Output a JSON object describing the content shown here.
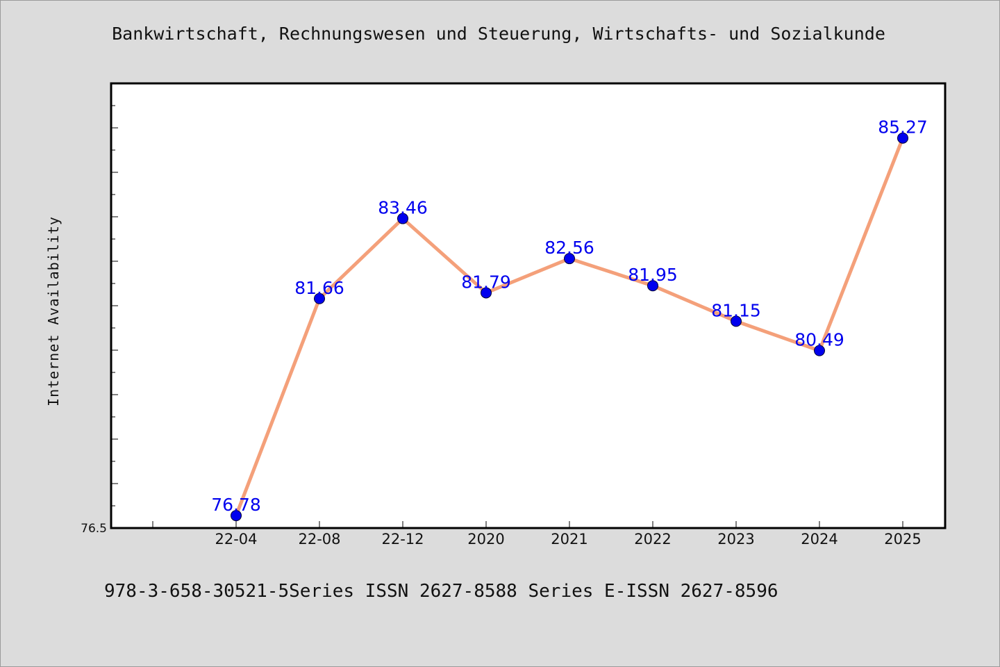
{
  "chart_data": {
    "type": "line",
    "title": "Bankwirtschaft, Rechnungswesen und Steuerung, Wirtschafts- und Sozialkunde",
    "xlabel": "",
    "ylabel": "Internet Availability",
    "categories": [
      "22-04",
      "22-08",
      "22-12",
      "2020",
      "2021",
      "2022",
      "2023",
      "2024",
      "2025"
    ],
    "series": [
      {
        "values": [
          76.78,
          81.66,
          83.46,
          81.79,
          82.56,
          81.95,
          81.15,
          80.49,
          85.27
        ]
      }
    ],
    "data_labels": [
      "76.78",
      "81.66",
      "83.46",
      "81.79",
      "82.56",
      "81.95",
      "81.15",
      "80.49",
      "85.27"
    ],
    "ylim": [
      76.5,
      86.5
    ],
    "y_tick_labels": [
      "76.5"
    ],
    "grid": false,
    "line_color": "#f4a07a",
    "marker_color": "#0000ee",
    "label_color": "#0000ee"
  },
  "footer_text": "978-3-658-30521-5Series ISSN 2627-8588 Series E-ISSN 2627-8596"
}
